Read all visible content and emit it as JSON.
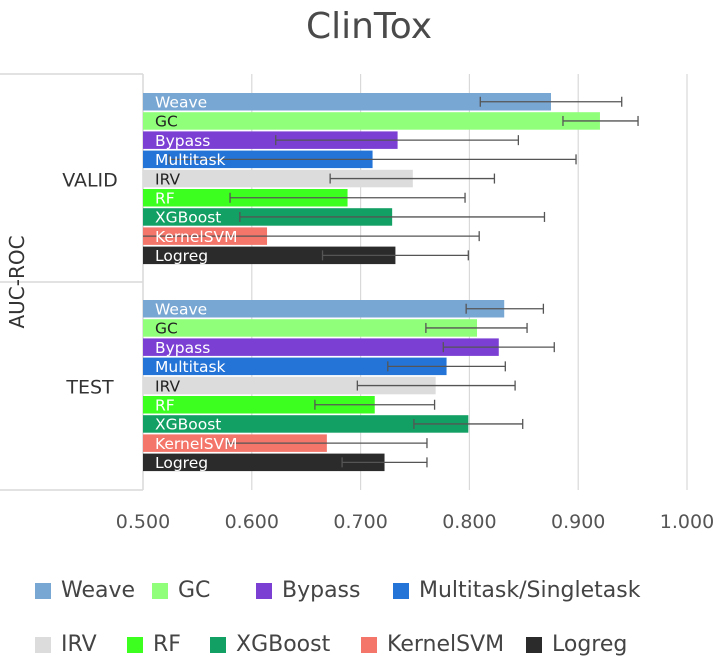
{
  "chart_data": {
    "type": "bar",
    "orientation": "horizontal",
    "title": "ClinTox",
    "ylabel": "AUC-ROC",
    "xlim": [
      0.5,
      1.0
    ],
    "x_ticks": [
      "0.500",
      "0.600",
      "0.700",
      "0.800",
      "0.900",
      "1.000"
    ],
    "grid": true,
    "legend_position": "bottom",
    "groups": [
      "VALID",
      "TEST"
    ],
    "series": [
      {
        "name": "Weave",
        "label": "Weave",
        "color": "#79a7d3",
        "label_color": "#ffffff",
        "values": [
          0.875,
          0.832
        ],
        "errors": [
          [
            0.81,
            0.94
          ],
          [
            0.797,
            0.868
          ]
        ]
      },
      {
        "name": "GC",
        "label": "GC",
        "color": "#90ff7a",
        "label_color": "#222222",
        "values": [
          0.92,
          0.807
        ],
        "errors": [
          [
            0.886,
            0.955
          ],
          [
            0.76,
            0.853
          ]
        ]
      },
      {
        "name": "Bypass",
        "label": "Bypass",
        "color": "#7b3fd4",
        "label_color": "#ffffff",
        "values": [
          0.734,
          0.827
        ],
        "errors": [
          [
            0.622,
            0.845
          ],
          [
            0.776,
            0.878
          ]
        ]
      },
      {
        "name": "Multitask/Singletask",
        "label": "Multitask",
        "color": "#2474d8",
        "label_color": "#ffffff",
        "values": [
          0.711,
          0.779
        ],
        "errors": [
          [
            0.524,
            0.898
          ],
          [
            0.725,
            0.833
          ]
        ]
      },
      {
        "name": "IRV",
        "label": "IRV",
        "color": "#dcdcdc",
        "label_color": "#222222",
        "values": [
          0.748,
          0.769
        ],
        "errors": [
          [
            0.672,
            0.823
          ],
          [
            0.697,
            0.842
          ]
        ]
      },
      {
        "name": "RF",
        "label": "RF",
        "color": "#3dff1f",
        "label_color": "#ffffff",
        "values": [
          0.688,
          0.713
        ],
        "errors": [
          [
            0.58,
            0.796
          ],
          [
            0.658,
            0.768
          ]
        ]
      },
      {
        "name": "XGBoost",
        "label": "XGBoost",
        "color": "#13a064",
        "label_color": "#ffffff",
        "values": [
          0.729,
          0.799
        ],
        "errors": [
          [
            0.589,
            0.869
          ],
          [
            0.749,
            0.849
          ]
        ]
      },
      {
        "name": "KernelSVM",
        "label": "KernelSVM",
        "color": "#f4766a",
        "label_color": "#ffffff",
        "values": [
          0.614,
          0.669
        ],
        "errors": [
          [
            0.42,
            0.809
          ],
          [
            0.577,
            0.761
          ]
        ]
      },
      {
        "name": "Logreg",
        "label": "Logreg",
        "color": "#2b2b2b",
        "label_color": "#ffffff",
        "values": [
          0.732,
          0.722
        ],
        "errors": [
          [
            0.665,
            0.799
          ],
          [
            0.683,
            0.761
          ]
        ]
      }
    ]
  }
}
